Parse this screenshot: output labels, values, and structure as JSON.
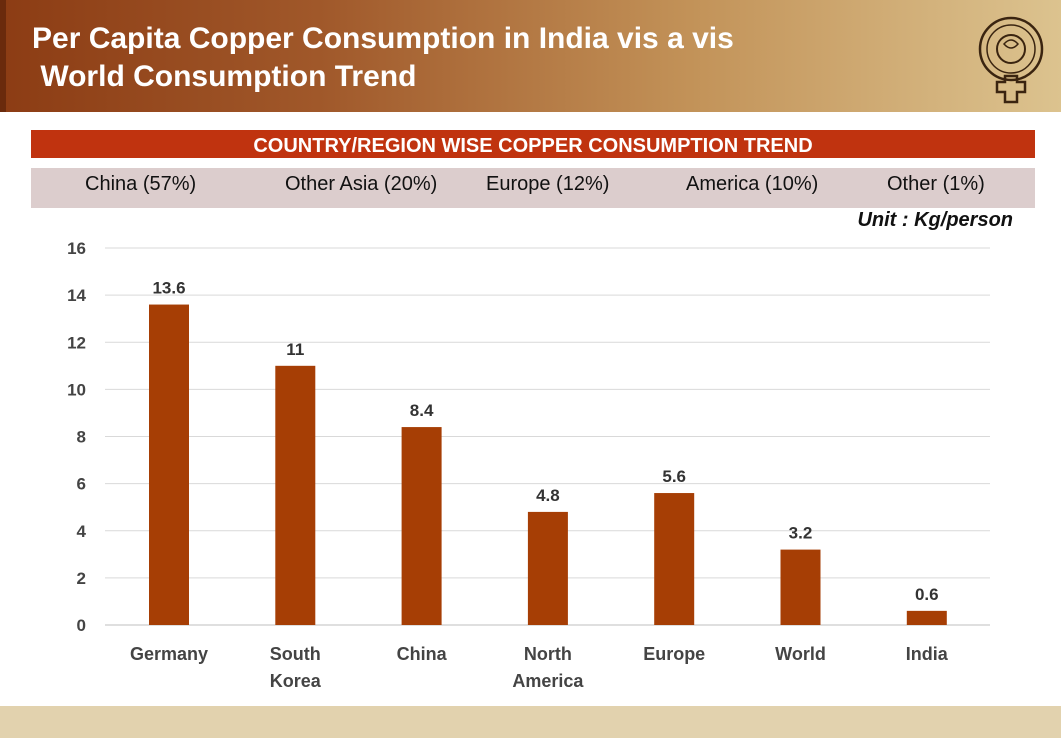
{
  "header": {
    "title": "Per Capita Copper Consumption in India vis a vis\n World Consumption Trend"
  },
  "colors": {
    "bar": "#a63e05",
    "banner": "#c0330f",
    "share_strip": "#dccdcd",
    "footer": "#e2d2ae"
  },
  "banner": {
    "text": "COUNTRY/REGION  WISE COPPER CONSUMPTION TREND"
  },
  "shares": [
    "China (57%)",
    "Other Asia (20%)",
    "Europe (12%)",
    "America (10%)",
    "Other (1%)"
  ],
  "unit_label": "Unit : Kg/person",
  "chart_data": {
    "type": "bar",
    "title": "",
    "categories": [
      "Germany",
      "South\nKorea",
      "China",
      "North\nAmerica",
      "Europe",
      "World",
      "India"
    ],
    "values": [
      13.6,
      11,
      8.4,
      4.8,
      5.6,
      3.2,
      0.6
    ],
    "data_labels": [
      "13.6",
      "11",
      "8.4",
      "4.8",
      "5.6",
      "3.2",
      "0.6"
    ],
    "ylim": [
      0,
      16
    ],
    "yticks": [
      0,
      2,
      4,
      6,
      8,
      10,
      12,
      14,
      16
    ],
    "xlabel": "",
    "ylabel": "",
    "grid": true
  }
}
